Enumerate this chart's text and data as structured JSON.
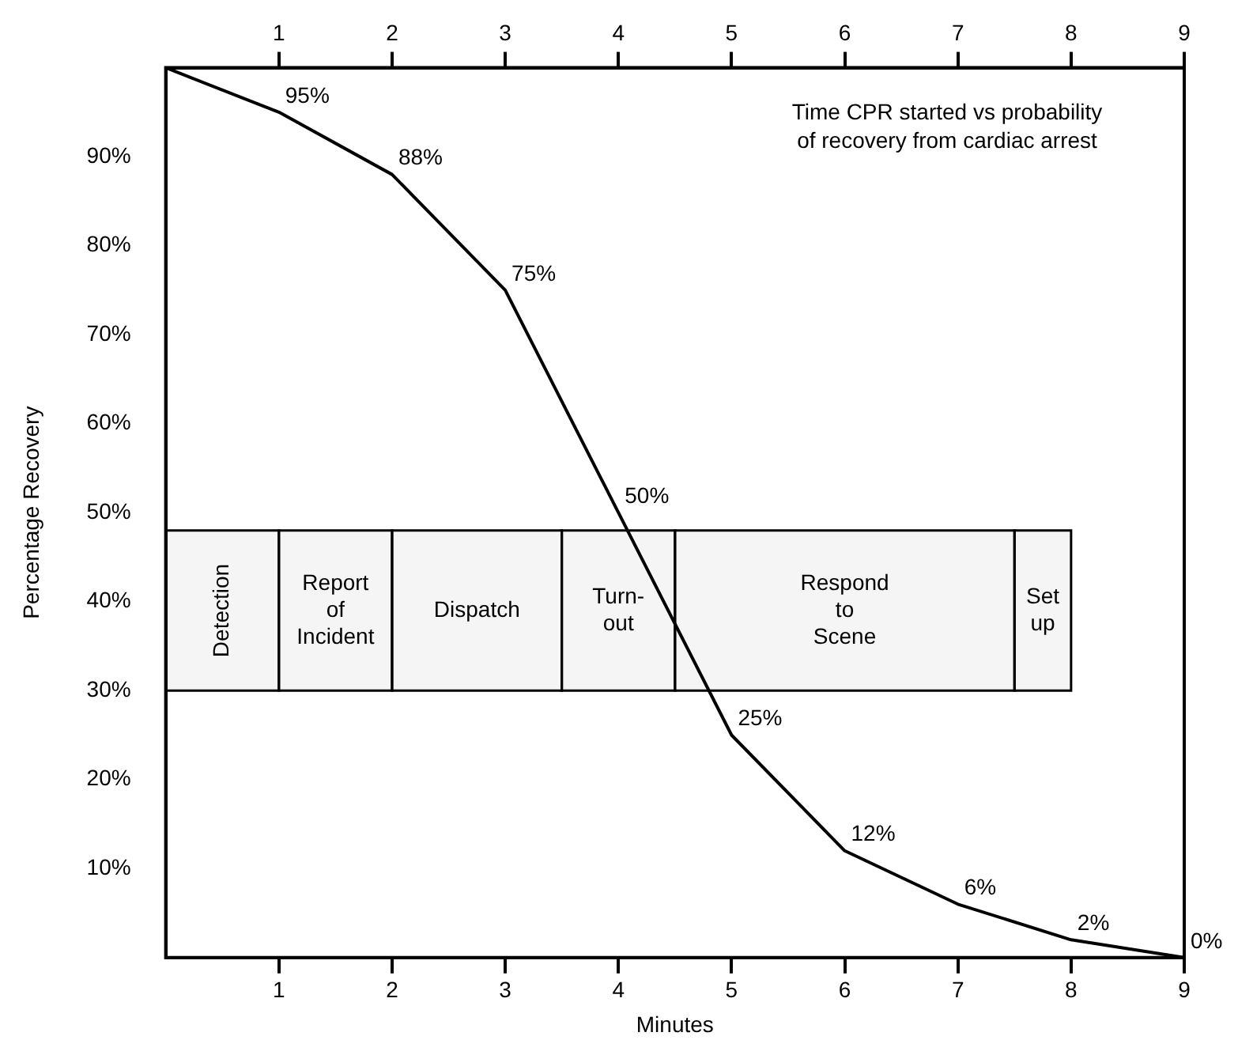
{
  "chart_data": {
    "type": "line",
    "title": "Time CPR started vs probability of recovery from cardiac arrest",
    "xlabel": "Minutes",
    "ylabel": "Percentage Recovery",
    "x": [
      0,
      1,
      2,
      3,
      4,
      5,
      6,
      7,
      8,
      9
    ],
    "series": [
      {
        "color": "#000000",
        "values": [
          100,
          95,
          88,
          75,
          50,
          25,
          12,
          6,
          2,
          0
        ],
        "value_labels": [
          null,
          "95%",
          "88%",
          "75%",
          "50%",
          "25%",
          "12%",
          "6%",
          "2%",
          "0%"
        ]
      }
    ],
    "xlim": [
      0,
      9
    ],
    "xticks": [
      1,
      2,
      3,
      4,
      5,
      6,
      7,
      8,
      9
    ],
    "x2lim": [
      0,
      9
    ],
    "x2ticks": [
      1,
      2,
      3,
      4,
      5,
      6,
      7,
      8,
      9
    ],
    "ylim": [
      0,
      100
    ],
    "yticks": [
      {
        "value": 10,
        "label": "10%"
      },
      {
        "value": 20,
        "label": "20%"
      },
      {
        "value": 30,
        "label": "30%"
      },
      {
        "value": 40,
        "label": "40%"
      },
      {
        "value": 50,
        "label": "50%"
      },
      {
        "value": 60,
        "label": "60%"
      },
      {
        "value": 70,
        "label": "70%"
      },
      {
        "value": 80,
        "label": "80%"
      },
      {
        "value": 90,
        "label": "90%"
      }
    ],
    "bands": [
      {
        "axis": "x",
        "from": 0,
        "to": 1,
        "label": "Detection"
      },
      {
        "axis": "x",
        "from": 1,
        "to": 2,
        "label": "Report of Incident"
      },
      {
        "axis": "x",
        "from": 2,
        "to": 3.5,
        "label": "Dispatch"
      },
      {
        "axis": "x",
        "from": 3.5,
        "to": 4.5,
        "label": "Turn-out"
      },
      {
        "axis": "x",
        "from": 4.5,
        "to": 7.5,
        "label": "Respond to Scene"
      },
      {
        "axis": "x",
        "from": 7.5,
        "to": 8,
        "label": "Set up"
      }
    ],
    "grid": false,
    "legend": false,
    "marker": "none",
    "line_style": "solid"
  }
}
